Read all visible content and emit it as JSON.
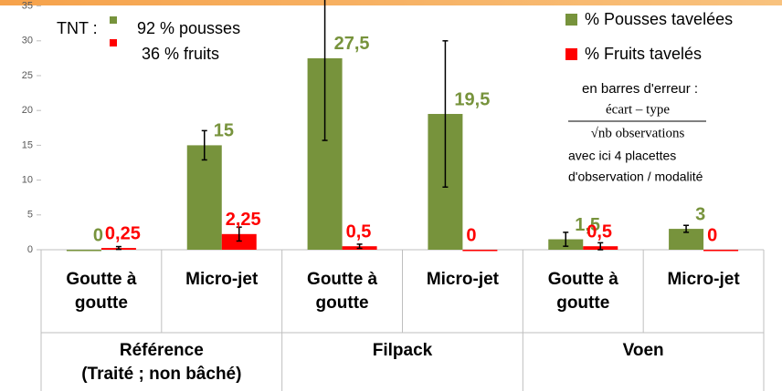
{
  "chart_data": {
    "type": "bar",
    "categories": [
      "Goutte à goutte",
      "Micro-jet",
      "Goutte à goutte",
      "Micro-jet",
      "Goutte à goutte",
      "Micro-jet"
    ],
    "group_labels": [
      [
        "Référence",
        "(Traité ; non bâché)"
      ],
      [
        "Filpack"
      ],
      [
        "Voen"
      ]
    ],
    "series": [
      {
        "name": "% Pousses tavelées",
        "color": "#77933c",
        "values": [
          0,
          15,
          27.5,
          19.5,
          1.5,
          3
        ],
        "value_labels": [
          "0",
          "15",
          "27,5",
          "19,5",
          "1,5",
          "3"
        ],
        "errors": [
          0,
          2.1,
          11.8,
          10.5,
          1,
          0.5
        ]
      },
      {
        "name": "% Fruits tavelés",
        "color": "#ff0000",
        "values": [
          0.25,
          2.25,
          0.5,
          0,
          0.5,
          0
        ],
        "value_labels": [
          "0,25",
          "2,25",
          "0,5",
          "0",
          "0,5",
          "0"
        ],
        "errors": [
          0.2,
          1,
          0.3,
          0,
          0.5,
          0
        ]
      }
    ],
    "ylim": [
      0,
      35
    ],
    "yticks": [
      0,
      5,
      10,
      15,
      20,
      25,
      30,
      35
    ],
    "tnt": {
      "label": "TNT :",
      "lines": [
        {
          "text": "92 % pousses",
          "color": "#77933c"
        },
        {
          "text": "36 % fruits",
          "color": "#ff0000"
        }
      ]
    },
    "error_note": {
      "intro": "en barres d'erreur :",
      "numerator": "écart – type",
      "denominator": "√nb observations",
      "lines": [
        "avec ici 4 placettes",
        "d'observation / modalité"
      ]
    }
  }
}
